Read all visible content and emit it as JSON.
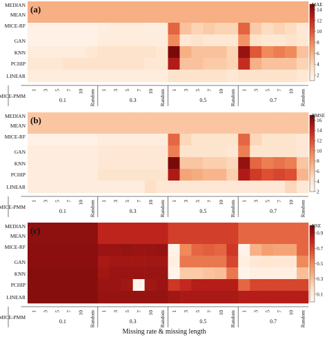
{
  "chart_data": {
    "type": "heatmap",
    "xlabel": "Missing rate & missing length",
    "rows": [
      "MEDIAN",
      "MEAN",
      "MICE-RF",
      "GAN",
      "KNN",
      "PCHIP",
      "LINEAR",
      "MICE-PMM"
    ],
    "column_labels": [
      "1",
      "3",
      "5",
      "7",
      "10",
      "Random"
    ],
    "group_labels": [
      "0.1",
      "0.3",
      "0.5",
      "0.7"
    ],
    "panels": [
      {
        "label": "(a)",
        "colorbar": {
          "title": "MAE",
          "ticks": [
            2,
            4,
            6,
            8,
            10,
            12,
            14
          ],
          "range": [
            1,
            15
          ]
        },
        "matrix": [
          [
            6,
            6,
            6,
            6,
            6,
            6,
            6,
            6,
            6,
            6,
            6,
            6,
            6,
            6,
            6,
            6,
            6,
            6,
            6,
            6,
            6,
            6,
            6,
            6
          ],
          [
            6,
            6,
            6,
            6,
            6,
            6,
            6,
            6,
            6,
            6,
            6,
            6,
            6,
            6,
            6,
            6,
            6,
            6,
            6,
            6,
            6,
            6,
            6,
            6
          ],
          [
            1.5,
            1.5,
            1.5,
            1.5,
            1.5,
            1.5,
            1.8,
            2,
            2,
            2,
            1.8,
            1.8,
            9.5,
            5,
            4,
            4.5,
            4,
            4,
            9.5,
            4.5,
            3.5,
            4,
            3.5,
            2.5
          ],
          [
            1.5,
            1.5,
            1.5,
            1.5,
            1.5,
            1.5,
            2,
            2,
            2,
            2,
            2,
            2,
            8,
            2.5,
            3,
            2.5,
            2.5,
            2.5,
            7.5,
            3,
            2.5,
            2.5,
            3,
            2.5
          ],
          [
            2,
            2,
            2,
            2,
            2,
            2.5,
            3,
            3,
            3,
            3,
            3,
            2.5,
            15,
            6,
            5,
            5,
            5,
            4,
            14,
            10,
            8,
            8.5,
            8,
            5
          ],
          [
            2.5,
            2.5,
            2.5,
            3,
            3,
            3,
            3,
            3,
            3,
            3,
            2.5,
            2.5,
            13,
            5,
            5,
            4.5,
            4.5,
            4,
            12,
            6,
            5,
            5,
            5,
            4
          ],
          [
            2,
            2,
            2,
            2,
            2,
            2,
            2,
            2,
            2,
            2,
            2,
            2,
            3,
            3,
            3,
            3,
            3,
            2.5,
            3,
            3,
            3,
            3,
            3,
            2.5
          ],
          [
            2,
            2,
            2,
            2,
            2,
            2,
            2,
            2,
            2,
            2,
            2,
            2,
            2.5,
            2.5,
            2.5,
            2.5,
            2.5,
            2.5,
            2.5,
            2.5,
            2.5,
            2.5,
            2.5,
            2.5
          ]
        ]
      },
      {
        "label": "(b)",
        "colorbar": {
          "title": "RMSE",
          "ticks": [
            2,
            4,
            6,
            8,
            10,
            12,
            14,
            16
          ],
          "range": [
            2,
            17
          ]
        },
        "matrix": [
          [
            6,
            6,
            6,
            6,
            6,
            6,
            6,
            6,
            6,
            6,
            6,
            6,
            6,
            6,
            6,
            6,
            6,
            6,
            6,
            6,
            6,
            6,
            6,
            6
          ],
          [
            6,
            6,
            6,
            6,
            6,
            6,
            6,
            6,
            6,
            6,
            6,
            6,
            6,
            6,
            6,
            6,
            6,
            6,
            6,
            6,
            6,
            6,
            6,
            6
          ],
          [
            2.5,
            2.5,
            2.5,
            2.5,
            2.5,
            2.5,
            3,
            3,
            3,
            3,
            3,
            3,
            11,
            5,
            4,
            4,
            4,
            4,
            11,
            5,
            4,
            4,
            4,
            3.5
          ],
          [
            3,
            3,
            3,
            3,
            3,
            3,
            3.5,
            3.5,
            3.5,
            3.5,
            3.5,
            3.5,
            10,
            4,
            4,
            4,
            4,
            3.5,
            10,
            4,
            4,
            4,
            4,
            3.5
          ],
          [
            3,
            3,
            3,
            3,
            3,
            3,
            3.5,
            3.5,
            3.5,
            3.5,
            3.5,
            3.5,
            17,
            6,
            6,
            5.5,
            5.5,
            5,
            16,
            11,
            10,
            10.5,
            10,
            6
          ],
          [
            3,
            3,
            3,
            3,
            3,
            3,
            4,
            4,
            4,
            4,
            4,
            4,
            15,
            8,
            7.5,
            7,
            7,
            5.5,
            15,
            13,
            12,
            12.5,
            12,
            7
          ],
          [
            3,
            3,
            3,
            3,
            3,
            3,
            3,
            3,
            3,
            3,
            4.5,
            3.5,
            3.5,
            3.5,
            3.5,
            3.5,
            3.5,
            3.5,
            3.5,
            3.5,
            3.5,
            3.5,
            5,
            3.5
          ],
          [
            3,
            3,
            3,
            3,
            3,
            3,
            3,
            3,
            3,
            3,
            3,
            3,
            3,
            3,
            3,
            3,
            3,
            3,
            3,
            3,
            3,
            3,
            3,
            3
          ]
        ]
      },
      {
        "label": "(c)",
        "colorbar": {
          "title": "NSE",
          "ticks": [
            0.1,
            0.3,
            0.5,
            0.7,
            0.9
          ],
          "range": [
            0,
            1
          ]
        },
        "matrix": [
          [
            0.95,
            0.95,
            0.95,
            0.95,
            0.95,
            0.95,
            0.82,
            0.82,
            0.82,
            0.82,
            0.82,
            0.82,
            0.72,
            0.72,
            0.72,
            0.72,
            0.72,
            0.72,
            0.6,
            0.6,
            0.6,
            0.6,
            0.6,
            0.6
          ],
          [
            0.95,
            0.95,
            0.95,
            0.95,
            0.95,
            0.95,
            0.82,
            0.82,
            0.82,
            0.82,
            0.82,
            0.82,
            0.72,
            0.72,
            0.72,
            0.72,
            0.72,
            0.72,
            0.6,
            0.6,
            0.6,
            0.6,
            0.6,
            0.6
          ],
          [
            0.96,
            0.96,
            0.96,
            0.96,
            0.96,
            0.96,
            0.92,
            0.92,
            0.93,
            0.92,
            0.92,
            0.93,
            0.02,
            0.5,
            0.6,
            0.62,
            0.6,
            0.75,
            0.02,
            0.35,
            0.42,
            0.4,
            0.4,
            0.6
          ],
          [
            0.96,
            0.96,
            0.96,
            0.96,
            0.96,
            0.96,
            0.88,
            0.9,
            0.9,
            0.9,
            0.9,
            0.9,
            0.05,
            0.55,
            0.55,
            0.55,
            0.55,
            0.7,
            0.05,
            0.1,
            0.12,
            0.1,
            0.1,
            0.5
          ],
          [
            0.97,
            0.97,
            0.97,
            0.97,
            0.97,
            0.97,
            0.9,
            0.92,
            0.92,
            0.92,
            0.92,
            0.92,
            0.01,
            0.25,
            0.25,
            0.28,
            0.3,
            0.55,
            0.01,
            0.05,
            0.05,
            0.05,
            0.05,
            0.3
          ],
          [
            0.97,
            0.97,
            0.97,
            0.97,
            0.97,
            0.97,
            0.92,
            0.92,
            0.9,
            0.0,
            0.9,
            0.92,
            0.75,
            0.8,
            0.85,
            0.85,
            0.85,
            0.85,
            0.6,
            0.7,
            0.7,
            0.7,
            0.7,
            0.7
          ],
          [
            0.97,
            0.97,
            0.97,
            0.97,
            0.97,
            0.97,
            0.93,
            0.93,
            0.93,
            0.93,
            0.93,
            0.93,
            0.9,
            0.88,
            0.88,
            0.88,
            0.88,
            0.88,
            0.85,
            0.85,
            0.85,
            0.85,
            0.85,
            0.85
          ],
          [
            0.96,
            0.96,
            0.96,
            0.96,
            0.96,
            0.96,
            0.9,
            0.9,
            0.9,
            0.9,
            0.9,
            0.9,
            0.8,
            0.8,
            0.8,
            0.8,
            0.8,
            0.8,
            0.8,
            0.8,
            0.8,
            0.8,
            0.8,
            0.8
          ]
        ]
      }
    ],
    "colormap": [
      "#fff5ee",
      "#fde0c5",
      "#f8b58b",
      "#f08a5b",
      "#dd4e32",
      "#bb1f1a",
      "#7a0a0a"
    ]
  }
}
